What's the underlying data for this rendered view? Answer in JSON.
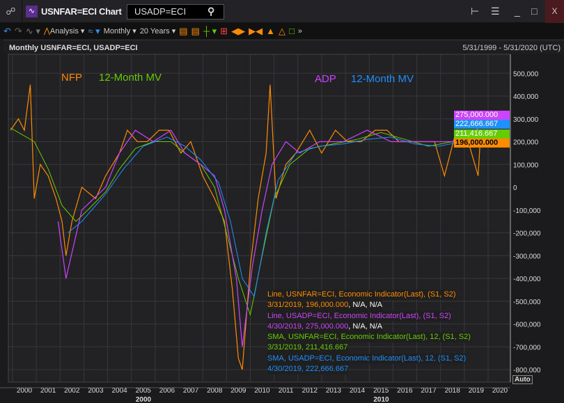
{
  "window": {
    "title": "USNFAR=ECI Chart",
    "search_value": "USADP=ECI",
    "link_icon": "link-icon",
    "app_icon": "chart-icon",
    "close_label": "X"
  },
  "toolbar": {
    "analysis": "Analysis",
    "interval": "Monthly",
    "range": "20 Years"
  },
  "header": {
    "title": "Monthly USNFAR=ECI, USADP=ECI",
    "range": "5/31/1999 - 5/31/2020 (UTC)"
  },
  "legend": {
    "nfp": "NFP",
    "nfp_mv": "12-Month MV",
    "adp": "ADP",
    "adp_mv": "12-Month MV"
  },
  "tooltip": [
    {
      "text": "Line, USNFAR=ECI, Economic Indicator(Last), (S1, S2)",
      "color": "#ff8c00"
    },
    {
      "text": "3/31/2019, 196,000.000",
      "extra": ", N/A, N/A",
      "color": "#ff8c00"
    },
    {
      "text": "Line, USADP=ECI, Economic Indicator(Last), (S1, S2)",
      "color": "#cc44ff"
    },
    {
      "text": "4/30/2019, 275,000.000",
      "extra": ", N/A, N/A",
      "color": "#cc44ff"
    },
    {
      "text": "SMA, USNFAR=ECI, Economic Indicator(Last),  12, (S1, S2)",
      "color": "#66cc00"
    },
    {
      "text": "3/31/2019, 211,416.667",
      "color": "#66cc00"
    },
    {
      "text": "SMA, USADP=ECI, Economic Indicator(Last),  12, (S1, S2)",
      "color": "#1e90ff"
    },
    {
      "text": "4/30/2019, 222,666.667",
      "color": "#1e90ff"
    }
  ],
  "badges": [
    {
      "text": "275,000.000",
      "color": "#cc44ff"
    },
    {
      "text": "222,666.667",
      "color": "#1e90ff"
    },
    {
      "text": "211,416.667",
      "color": "#66cc00"
    },
    {
      "text": "196,000.000",
      "color": "#ff8c00"
    }
  ],
  "auto_label": "Auto",
  "chart_data": {
    "type": "line",
    "xlim": [
      "1999-05",
      "2020-05"
    ],
    "ylim": [
      -850000,
      550000
    ],
    "yticks": [
      500000,
      400000,
      300000,
      200000,
      100000,
      0,
      -100000,
      -200000,
      -300000,
      -400000,
      -500000,
      -600000,
      -700000,
      -800000
    ],
    "ytick_labels": [
      "500,000",
      "400,000",
      "300,000",
      "200,000",
      "100,000",
      "0",
      "-100,000",
      "-200,000",
      "-300,000",
      "-400,000",
      "-500,000",
      "-600,000",
      "-700,000",
      "-800,000"
    ],
    "xtick_labels": [
      "2000",
      "2001",
      "2002",
      "2003",
      "2004",
      "2005",
      "2006",
      "2007",
      "2008",
      "2009",
      "2010",
      "2011",
      "2012",
      "2013",
      "2014",
      "2015",
      "2016",
      "2017",
      "2018",
      "2019",
      "2020"
    ],
    "xtick_major": [
      "2000",
      "2010"
    ],
    "grid": true,
    "series": [
      {
        "name": "NFP",
        "color": "#ff8c00",
        "x": [
          "1999-06",
          "1999-10",
          "2000-01",
          "2000-04",
          "2000-06",
          "2000-09",
          "2001-01",
          "2001-05",
          "2001-08",
          "2001-10",
          "2002-01",
          "2002-06",
          "2003-01",
          "2003-06",
          "2004-01",
          "2004-05",
          "2004-10",
          "2005-03",
          "2005-09",
          "2006-02",
          "2006-08",
          "2007-01",
          "2007-07",
          "2008-01",
          "2008-06",
          "2008-10",
          "2009-01",
          "2009-03",
          "2009-07",
          "2009-11",
          "2010-03",
          "2010-05",
          "2010-08",
          "2011-01",
          "2011-06",
          "2012-01",
          "2012-07",
          "2013-02",
          "2013-08",
          "2014-03",
          "2014-10",
          "2015-04",
          "2015-10",
          "2016-04",
          "2016-10",
          "2017-04",
          "2017-09",
          "2018-03",
          "2018-09",
          "2019-02",
          "2019-03"
        ],
        "y": [
          250000,
          300000,
          250000,
          450000,
          -50000,
          100000,
          50000,
          -50000,
          -150000,
          -300000,
          -150000,
          0,
          -50000,
          50000,
          150000,
          250000,
          200000,
          200000,
          250000,
          250000,
          150000,
          200000,
          50000,
          -50000,
          -150000,
          -450000,
          -750000,
          -800000,
          -350000,
          -50000,
          150000,
          450000,
          -50000,
          100000,
          150000,
          250000,
          150000,
          250000,
          200000,
          200000,
          250000,
          250000,
          200000,
          200000,
          200000,
          200000,
          50000,
          250000,
          200000,
          50000,
          196000
        ]
      },
      {
        "name": "12-Month MV",
        "color": "#66cc00",
        "x": [
          "1999-06",
          "2000-06",
          "2001-01",
          "2001-08",
          "2002-03",
          "2002-09",
          "2003-06",
          "2004-01",
          "2004-09",
          "2005-06",
          "2006-03",
          "2006-10",
          "2007-06",
          "2008-01",
          "2008-07",
          "2009-01",
          "2009-07",
          "2010-01",
          "2010-07",
          "2011-03",
          "2012-01",
          "2013-01",
          "2014-01",
          "2015-01",
          "2016-01",
          "2017-01",
          "2018-01",
          "2019-03"
        ],
        "y": [
          260000,
          200000,
          80000,
          -80000,
          -150000,
          -100000,
          -20000,
          80000,
          170000,
          200000,
          200000,
          150000,
          100000,
          0,
          -200000,
          -400000,
          -560000,
          -300000,
          -50000,
          100000,
          170000,
          190000,
          210000,
          240000,
          210000,
          180000,
          200000,
          211417
        ]
      },
      {
        "name": "ADP",
        "color": "#cc44ff",
        "x": [
          "2001-06",
          "2001-10",
          "2002-06",
          "2003-06",
          "2004-01",
          "2004-09",
          "2005-06",
          "2006-03",
          "2006-10",
          "2007-06",
          "2008-01",
          "2008-06",
          "2008-12",
          "2009-03",
          "2009-08",
          "2010-01",
          "2010-06",
          "2011-01",
          "2011-08",
          "2012-06",
          "2013-06",
          "2014-06",
          "2015-06",
          "2016-06",
          "2017-06",
          "2018-06",
          "2019-01",
          "2019-04"
        ],
        "y": [
          -150000,
          -400000,
          -100000,
          0,
          150000,
          250000,
          200000,
          250000,
          150000,
          100000,
          50000,
          -100000,
          -400000,
          -700000,
          -350000,
          -100000,
          100000,
          200000,
          150000,
          200000,
          200000,
          250000,
          200000,
          200000,
          200000,
          200000,
          250000,
          275000
        ]
      },
      {
        "name": "12-Month MV",
        "color": "#1e90ff",
        "x": [
          "2001-11",
          "2002-06",
          "2003-06",
          "2004-03",
          "2005-01",
          "2006-01",
          "2006-10",
          "2007-06",
          "2008-03",
          "2008-09",
          "2009-03",
          "2009-09",
          "2010-03",
          "2010-09",
          "2011-06",
          "2012-06",
          "2013-06",
          "2014-06",
          "2015-06",
          "2016-06",
          "2017-06",
          "2018-06",
          "2019-04"
        ],
        "y": [
          -200000,
          -150000,
          -30000,
          80000,
          180000,
          220000,
          180000,
          120000,
          20000,
          -150000,
          -400000,
          -480000,
          -200000,
          30000,
          150000,
          180000,
          190000,
          210000,
          220000,
          190000,
          180000,
          200000,
          222667
        ]
      }
    ]
  }
}
